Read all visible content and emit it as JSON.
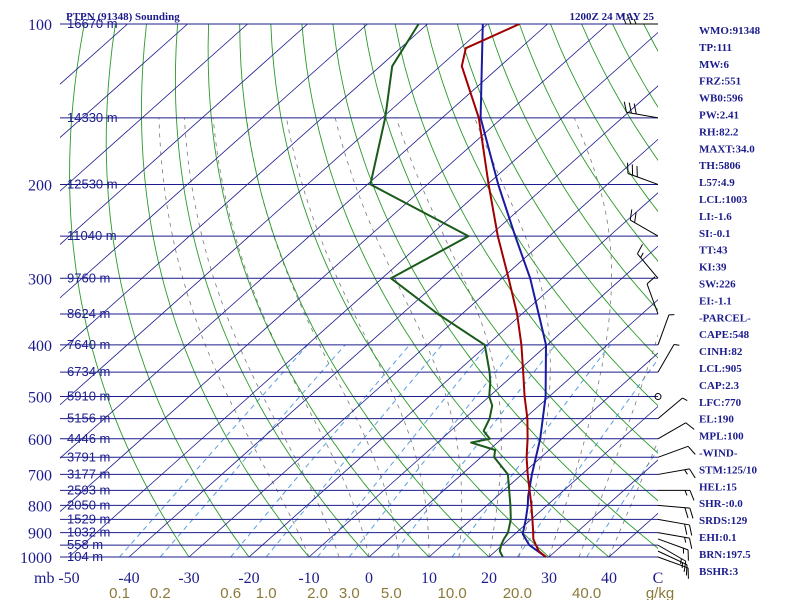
{
  "header": {
    "station": "PTPN (91348) Sounding",
    "time": "1200Z 24 MAY 25"
  },
  "colors": {
    "isobar": "#1c1c8c",
    "isotherm": "#1c1c8c",
    "dry_adiabat": "#2a9a2a",
    "moist_adiabat": "#7a7a7a",
    "mixing_ratio": "#5aa0e0",
    "temperature": "#a00000",
    "dewpoint": "#1a5a1a",
    "parcel": "#1a1aa0"
  },
  "indices": [
    "WMO:91348",
    "TP:111",
    "MW:6",
    "FRZ:551",
    "WB0:596",
    "PW:2.41",
    "RH:82.2",
    "MAXT:34.0",
    "TH:5806",
    "L57:4.9",
    "LCL:1003",
    "LI:-1.6",
    "SI:-0.1",
    "TT:43",
    "KI:39",
    "SW:226",
    "EI:-1.1",
    "-PARCEL-",
    "CAPE:548",
    "CINH:82",
    "LCL:905",
    "CAP:2.3",
    "LFC:770",
    "EL:190",
    "MPL:100",
    "-WIND-",
    "STM:125/10",
    "HEL:15",
    "SHR-:0.0",
    "SRDS:129",
    "EHI:0.1",
    "BRN:197.5",
    "BSHR:3"
  ],
  "chart_data": {
    "type": "line",
    "title": "PTPN (91348) Sounding",
    "xlabel": "",
    "ylabel": "mb",
    "pressure_axis": {
      "scale": "log",
      "range": [
        1000,
        100
      ]
    },
    "temperature_axis": {
      "range": [
        -50,
        50
      ]
    },
    "pressure_ticks": [
      "100",
      "200",
      "300",
      "400",
      "500",
      "600",
      "700",
      "800",
      "900",
      "1000"
    ],
    "temperature_ticks": [
      "-50",
      "-40",
      "-30",
      "-20",
      "-10",
      "0",
      "10",
      "20",
      "30",
      "40",
      "C"
    ],
    "height_labels": [
      {
        "p": 100,
        "label": "16670 m"
      },
      {
        "p": 150,
        "label": "14330 m"
      },
      {
        "p": 200,
        "label": "12530 m"
      },
      {
        "p": 250,
        "label": "11040 m"
      },
      {
        "p": 300,
        "label": "9760 m"
      },
      {
        "p": 350,
        "label": "8624 m"
      },
      {
        "p": 400,
        "label": "7640 m"
      },
      {
        "p": 450,
        "label": "6734 m"
      },
      {
        "p": 500,
        "label": "5910 m"
      },
      {
        "p": 550,
        "label": "5156 m"
      },
      {
        "p": 600,
        "label": "4446 m"
      },
      {
        "p": 650,
        "label": "3791 m"
      },
      {
        "p": 700,
        "label": "3177 m"
      },
      {
        "p": 750,
        "label": "2593 m"
      },
      {
        "p": 800,
        "label": "2050 m"
      },
      {
        "p": 850,
        "label": "1529 m"
      },
      {
        "p": 900,
        "label": "1032 m"
      },
      {
        "p": 950,
        "label": "558 m"
      },
      {
        "p": 1000,
        "label": "104 m"
      }
    ],
    "mixing_ratio_labels": [
      "0.1",
      "0.2",
      "0.6",
      "1.0",
      "2.0",
      "3.0",
      "5.0",
      "10.0",
      "20.0",
      "40.0",
      "g/kg"
    ],
    "series": [
      {
        "name": "Temperature",
        "points": [
          [
            1000,
            29.5
          ],
          [
            975,
            27.2
          ],
          [
            950,
            25.6
          ],
          [
            925,
            24.0
          ],
          [
            900,
            22.8
          ],
          [
            850,
            20.2
          ],
          [
            800,
            17.4
          ],
          [
            750,
            14.3
          ],
          [
            700,
            11.0
          ],
          [
            650,
            7.6
          ],
          [
            600,
            4.3
          ],
          [
            550,
            0.5
          ],
          [
            500,
            -4.1
          ],
          [
            450,
            -8.9
          ],
          [
            400,
            -14.3
          ],
          [
            350,
            -20.8
          ],
          [
            300,
            -28.9
          ],
          [
            250,
            -38.6
          ],
          [
            200,
            -49.8
          ],
          [
            150,
            -63.9
          ],
          [
            120,
            -76.4
          ],
          [
            111,
            -79.1
          ],
          [
            100,
            -74.7
          ]
        ]
      },
      {
        "name": "Dewpoint",
        "points": [
          [
            1000,
            22.3
          ],
          [
            975,
            20.7
          ],
          [
            950,
            19.8
          ],
          [
            925,
            19.1
          ],
          [
            900,
            18.6
          ],
          [
            850,
            16.6
          ],
          [
            800,
            13.9
          ],
          [
            750,
            10.9
          ],
          [
            700,
            7.7
          ],
          [
            650,
            2.2
          ],
          [
            630,
            1.0
          ],
          [
            610,
            -4.4
          ],
          [
            600,
            -2.0
          ],
          [
            580,
            -4.5
          ],
          [
            550,
            -5.8
          ],
          [
            520,
            -7.8
          ],
          [
            500,
            -10.0
          ],
          [
            470,
            -12.5
          ],
          [
            450,
            -14.5
          ],
          [
            400,
            -20.4
          ],
          [
            350,
            -34.0
          ],
          [
            300,
            -48.5
          ],
          [
            250,
            -43.5
          ],
          [
            200,
            -69.5
          ],
          [
            150,
            -79.5
          ],
          [
            120,
            -88.0
          ],
          [
            100,
            -91.5
          ]
        ]
      },
      {
        "name": "Parcel",
        "points": [
          [
            1000,
            29.5
          ],
          [
            950,
            24.5
          ],
          [
            905,
            21.3
          ],
          [
            850,
            19.1
          ],
          [
            800,
            16.8
          ],
          [
            770,
            15.2
          ],
          [
            700,
            11.7
          ],
          [
            600,
            6.4
          ],
          [
            500,
            -0.6
          ],
          [
            400,
            -10.2
          ],
          [
            300,
            -25.3
          ],
          [
            250,
            -35.7
          ],
          [
            200,
            -48.2
          ],
          [
            150,
            -63.6
          ],
          [
            100,
            -80.8
          ]
        ]
      }
    ],
    "wind_barbs": [
      {
        "p": 1000,
        "dir": 110,
        "spd": 10
      },
      {
        "p": 975,
        "dir": 115,
        "spd": 15
      },
      {
        "p": 950,
        "dir": 120,
        "spd": 15
      },
      {
        "p": 925,
        "dir": 110,
        "spd": 15
      },
      {
        "p": 900,
        "dir": 100,
        "spd": 15
      },
      {
        "p": 850,
        "dir": 100,
        "spd": 20
      },
      {
        "p": 800,
        "dir": 95,
        "spd": 20
      },
      {
        "p": 750,
        "dir": 90,
        "spd": 15
      },
      {
        "p": 700,
        "dir": 80,
        "spd": 15
      },
      {
        "p": 650,
        "dir": 70,
        "spd": 10
      },
      {
        "p": 600,
        "dir": 60,
        "spd": 10
      },
      {
        "p": 550,
        "dir": 50,
        "spd": 5
      },
      {
        "p": 500,
        "dir": 40,
        "spd": 0
      },
      {
        "p": 450,
        "dir": 30,
        "spd": 5
      },
      {
        "p": 400,
        "dir": 20,
        "spd": 5
      },
      {
        "p": 350,
        "dir": 340,
        "spd": 10
      },
      {
        "p": 300,
        "dir": 320,
        "spd": 15
      },
      {
        "p": 250,
        "dir": 300,
        "spd": 20
      },
      {
        "p": 200,
        "dir": 290,
        "spd": 30
      },
      {
        "p": 150,
        "dir": 280,
        "spd": 30
      },
      {
        "p": 100,
        "dir": 270,
        "spd": 25
      }
    ]
  }
}
